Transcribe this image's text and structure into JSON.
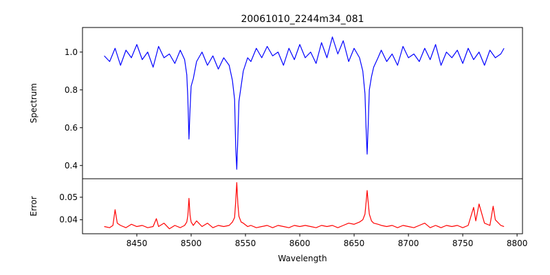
{
  "title": "20061010_2244m34_081",
  "chart_data": [
    {
      "type": "line",
      "panel": "top",
      "title": "20061010_2244m34_081",
      "xlabel": "",
      "ylabel": "Spectrum",
      "xlim": [
        8400,
        8805
      ],
      "ylim": [
        0.33,
        1.13
      ],
      "xticks": [],
      "yticks": [
        0.4,
        0.6,
        0.8,
        1.0
      ],
      "ytick_labels": [
        "0.4",
        "0.6",
        "0.8",
        "1.0"
      ],
      "grid": false,
      "series": [
        {
          "color": "#0000ff",
          "x": [
            8420,
            8425,
            8430,
            8435,
            8440,
            8445,
            8450,
            8455,
            8460,
            8465,
            8470,
            8475,
            8480,
            8485,
            8490,
            8494,
            8496,
            8497,
            8498,
            8499,
            8500,
            8502,
            8505,
            8510,
            8515,
            8520,
            8525,
            8530,
            8535,
            8538,
            8540,
            8541,
            8542,
            8543,
            8544,
            8546,
            8548,
            8552,
            8555,
            8560,
            8565,
            8570,
            8575,
            8580,
            8585,
            8590,
            8595,
            8600,
            8605,
            8610,
            8615,
            8620,
            8625,
            8630,
            8635,
            8640,
            8645,
            8650,
            8655,
            8658,
            8660,
            8661,
            8662,
            8663,
            8664,
            8666,
            8668,
            8672,
            8675,
            8680,
            8685,
            8690,
            8695,
            8700,
            8705,
            8710,
            8715,
            8720,
            8725,
            8730,
            8735,
            8740,
            8745,
            8750,
            8755,
            8760,
            8765,
            8770,
            8775,
            8780,
            8785,
            8788
          ],
          "y": [
            0.98,
            0.95,
            1.02,
            0.93,
            1.01,
            0.97,
            1.04,
            0.96,
            1.0,
            0.92,
            1.03,
            0.97,
            0.99,
            0.94,
            1.01,
            0.96,
            0.88,
            0.75,
            0.54,
            0.7,
            0.82,
            0.86,
            0.95,
            1.0,
            0.93,
            0.98,
            0.91,
            0.97,
            0.93,
            0.85,
            0.75,
            0.5,
            0.38,
            0.55,
            0.74,
            0.82,
            0.9,
            0.97,
            0.95,
            1.02,
            0.97,
            1.03,
            0.98,
            1.0,
            0.93,
            1.02,
            0.96,
            1.04,
            0.97,
            1.0,
            0.94,
            1.05,
            0.97,
            1.08,
            0.99,
            1.06,
            0.95,
            1.02,
            0.97,
            0.9,
            0.78,
            0.6,
            0.46,
            0.62,
            0.8,
            0.87,
            0.92,
            0.97,
            1.01,
            0.95,
            0.99,
            0.93,
            1.03,
            0.97,
            0.99,
            0.95,
            1.02,
            0.96,
            1.04,
            0.93,
            1.0,
            0.97,
            1.01,
            0.94,
            1.02,
            0.96,
            1.0,
            0.93,
            1.01,
            0.97,
            0.99,
            1.02
          ]
        }
      ]
    },
    {
      "type": "line",
      "panel": "bottom",
      "xlabel": "Wavelength",
      "ylabel": "Error",
      "xlim": [
        8400,
        8805
      ],
      "ylim": [
        0.0338,
        0.0582
      ],
      "xticks": [
        8450,
        8500,
        8550,
        8600,
        8650,
        8700,
        8750,
        8800
      ],
      "xtick_labels": [
        "8450",
        "8500",
        "8550",
        "8600",
        "8650",
        "8700",
        "8750",
        "8800"
      ],
      "yticks": [
        0.04,
        0.05
      ],
      "ytick_labels": [
        "0.04",
        "0.05"
      ],
      "grid": false,
      "series": [
        {
          "color": "#ff0000",
          "x": [
            8420,
            8425,
            8428,
            8430,
            8432,
            8435,
            8440,
            8445,
            8450,
            8455,
            8460,
            8465,
            8468,
            8470,
            8475,
            8480,
            8485,
            8490,
            8494,
            8496,
            8497,
            8498,
            8499,
            8500,
            8502,
            8505,
            8510,
            8515,
            8520,
            8525,
            8530,
            8535,
            8538,
            8540,
            8541,
            8542,
            8543,
            8544,
            8546,
            8548,
            8552,
            8555,
            8560,
            8565,
            8570,
            8575,
            8580,
            8585,
            8590,
            8595,
            8600,
            8605,
            8610,
            8615,
            8620,
            8625,
            8630,
            8635,
            8640,
            8645,
            8650,
            8655,
            8658,
            8660,
            8661,
            8662,
            8663,
            8664,
            8666,
            8668,
            8672,
            8675,
            8680,
            8685,
            8690,
            8695,
            8700,
            8705,
            8710,
            8715,
            8720,
            8725,
            8730,
            8735,
            8740,
            8745,
            8750,
            8755,
            8760,
            8762,
            8765,
            8770,
            8775,
            8778,
            8780,
            8785,
            8788
          ],
          "y": [
            0.037,
            0.0365,
            0.0375,
            0.0445,
            0.0385,
            0.0375,
            0.0365,
            0.038,
            0.037,
            0.0375,
            0.0365,
            0.037,
            0.0405,
            0.037,
            0.0385,
            0.036,
            0.0375,
            0.0365,
            0.0375,
            0.039,
            0.042,
            0.0495,
            0.042,
            0.039,
            0.0375,
            0.0395,
            0.037,
            0.0385,
            0.0365,
            0.0375,
            0.037,
            0.0375,
            0.039,
            0.041,
            0.048,
            0.0565,
            0.047,
            0.0415,
            0.039,
            0.0385,
            0.037,
            0.0375,
            0.0365,
            0.037,
            0.0375,
            0.0365,
            0.0375,
            0.037,
            0.0365,
            0.0375,
            0.037,
            0.0375,
            0.037,
            0.0365,
            0.0375,
            0.037,
            0.0375,
            0.0365,
            0.0375,
            0.0385,
            0.038,
            0.039,
            0.04,
            0.0425,
            0.0475,
            0.053,
            0.0475,
            0.0425,
            0.0395,
            0.0385,
            0.038,
            0.0375,
            0.037,
            0.0375,
            0.0365,
            0.0375,
            0.037,
            0.0365,
            0.0375,
            0.0385,
            0.0365,
            0.0375,
            0.0365,
            0.0375,
            0.037,
            0.0375,
            0.0365,
            0.0375,
            0.0455,
            0.0395,
            0.047,
            0.0385,
            0.0375,
            0.046,
            0.04,
            0.0375,
            0.037
          ]
        }
      ]
    }
  ]
}
